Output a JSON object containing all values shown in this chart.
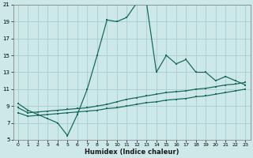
{
  "xlabel": "Humidex (Indice chaleur)",
  "bg_color": "#cce8e8",
  "grid_color": "#aacccc",
  "line_color": "#1a6b5a",
  "xlim": [
    -0.5,
    23.5
  ],
  "ylim": [
    5,
    21
  ],
  "yticks": [
    5,
    7,
    9,
    11,
    13,
    15,
    17,
    19,
    21
  ],
  "xticks": [
    0,
    1,
    2,
    3,
    4,
    5,
    6,
    7,
    8,
    9,
    10,
    11,
    12,
    13,
    14,
    15,
    16,
    17,
    18,
    19,
    20,
    21,
    22,
    23
  ],
  "line1_x": [
    0,
    1,
    2,
    3,
    4,
    5,
    6,
    7,
    8,
    9,
    10,
    11,
    12,
    13,
    14,
    15,
    16,
    17,
    18,
    19,
    20,
    21,
    22,
    23
  ],
  "line1_y": [
    9.3,
    8.5,
    8.0,
    7.5,
    7.0,
    5.5,
    8.0,
    11.0,
    15.0,
    19.2,
    19.0,
    19.5,
    21.2,
    21.2,
    13.0,
    15.0,
    14.0,
    14.5,
    13.0,
    13.0,
    12.0,
    12.5,
    12.0,
    11.5
  ],
  "line2_x": [
    0,
    1,
    2,
    3,
    4,
    5,
    6,
    7,
    8,
    9,
    10,
    11,
    12,
    13,
    14,
    15,
    16,
    17,
    18,
    19,
    20,
    21,
    22,
    23
  ],
  "line2_y": [
    8.8,
    8.2,
    8.3,
    8.4,
    8.5,
    8.6,
    8.7,
    8.8,
    9.0,
    9.2,
    9.5,
    9.8,
    10.0,
    10.2,
    10.4,
    10.6,
    10.7,
    10.8,
    11.0,
    11.1,
    11.3,
    11.5,
    11.6,
    11.8
  ],
  "line3_x": [
    0,
    1,
    2,
    3,
    4,
    5,
    6,
    7,
    8,
    9,
    10,
    11,
    12,
    13,
    14,
    15,
    16,
    17,
    18,
    19,
    20,
    21,
    22,
    23
  ],
  "line3_y": [
    8.2,
    7.8,
    7.9,
    8.0,
    8.1,
    8.2,
    8.3,
    8.4,
    8.5,
    8.7,
    8.8,
    9.0,
    9.2,
    9.4,
    9.5,
    9.7,
    9.8,
    9.9,
    10.1,
    10.2,
    10.4,
    10.6,
    10.8,
    11.0
  ]
}
